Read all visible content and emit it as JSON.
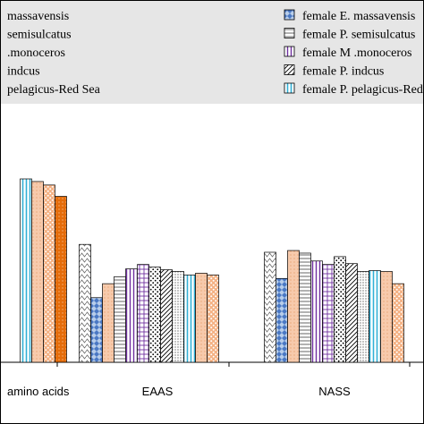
{
  "chart_data": {
    "type": "bar",
    "title": "",
    "xlabel": "",
    "ylabel": "",
    "categories": [
      "amino acids",
      "EAAS",
      "NASS",
      ""
    ],
    "legend_position": "top",
    "legend": [
      {
        "label": "massavensis",
        "pattern": "none",
        "color": "#ffffff"
      },
      {
        "label": "semisulcatus",
        "pattern": "none",
        "color": "#ffffff"
      },
      {
        "label": ".monoceros",
        "pattern": "none",
        "color": "#ffffff"
      },
      {
        "label": "indcus",
        "pattern": "none",
        "color": "#ffffff"
      },
      {
        "label": "pelagicus-Red Sea",
        "pattern": "none",
        "color": "#ffffff"
      },
      {
        "label": "female E.  massavensis",
        "pattern": "diamond-blue",
        "color": "#5b8bd0"
      },
      {
        "label": "female P.  semisulcatus",
        "pattern": "horizontal",
        "color": "#bbbbbb"
      },
      {
        "label": "female M .monoceros",
        "pattern": "vertical-purple",
        "color": "#7030a0"
      },
      {
        "label": "female P.   indcus",
        "pattern": "diagonal",
        "color": "#000000"
      },
      {
        "label": "female P.   pelagicus-Red Sea",
        "pattern": "vertical-cyan",
        "color": "#31b0d6"
      }
    ],
    "series": [
      {
        "pattern": "wave",
        "values": [
          null,
          135,
          126,
          0
        ]
      },
      {
        "pattern": "diamond-blue",
        "values": [
          null,
          74,
          96,
          0
        ]
      },
      {
        "pattern": "peach",
        "values": [
          null,
          90,
          128,
          0
        ]
      },
      {
        "pattern": "horizontal",
        "values": [
          null,
          98,
          125,
          0
        ]
      },
      {
        "pattern": "vertical-purple",
        "values": [
          null,
          107,
          116,
          0
        ]
      },
      {
        "pattern": "grid-purple",
        "values": [
          null,
          112,
          112,
          0
        ]
      },
      {
        "pattern": "dots",
        "values": [
          null,
          109,
          121,
          0
        ]
      },
      {
        "pattern": "diagonal",
        "values": [
          null,
          106,
          113,
          0
        ]
      },
      {
        "pattern": "dots-dense",
        "values": [
          null,
          104,
          104,
          0
        ]
      },
      {
        "pattern": "vertical-cyan",
        "values": [
          210,
          100,
          105,
          0
        ]
      },
      {
        "pattern": "peach",
        "values": [
          207,
          102,
          104,
          0
        ]
      },
      {
        "pattern": "dots-orange",
        "values": [
          203,
          100,
          90,
          0
        ]
      },
      {
        "pattern": "orange",
        "values": [
          190,
          0,
          0,
          6
        ]
      }
    ],
    "ylim": [
      0,
      220
    ],
    "grid": false
  }
}
